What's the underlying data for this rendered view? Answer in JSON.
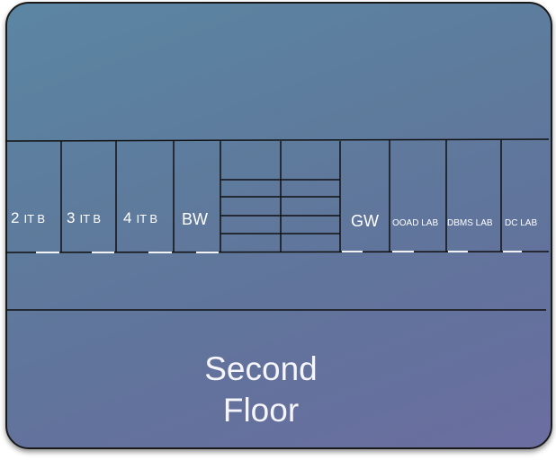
{
  "floor": {
    "title_line1": "Second",
    "title_line2": "Floor"
  },
  "rooms": [
    {
      "num": "2",
      "name": "IT B"
    },
    {
      "num": "3",
      "name": "IT B"
    },
    {
      "num": "4",
      "name": "IT B"
    },
    {
      "name": "BW"
    },
    {
      "name": "GW"
    },
    {
      "name": "OOAD LAB"
    },
    {
      "name": "DBMS LAB"
    },
    {
      "name": "DC LAB"
    }
  ],
  "colors": {
    "background_top": "#5b86a3",
    "background_bottom": "#6b6ea0",
    "walls": "#111111",
    "doors": "#ffffff",
    "text": "#ffffff"
  }
}
